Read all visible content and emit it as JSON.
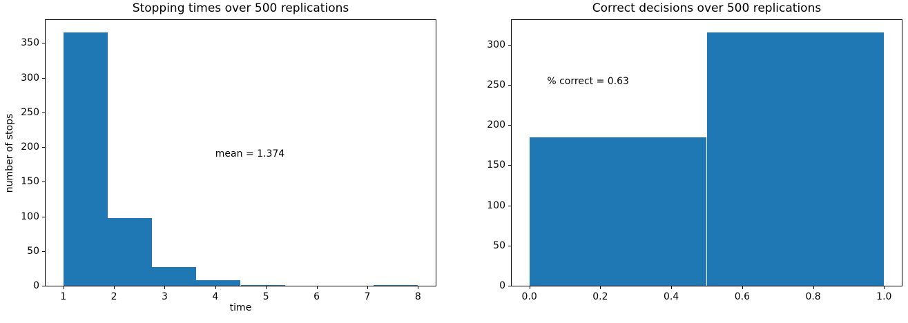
{
  "figure": {
    "background": "#ffffff",
    "bar_color": "#1f77b4",
    "spine_color": "#000000",
    "text_color": "#000000"
  },
  "chart_data": [
    {
      "type": "bar",
      "title": "Stopping times over 500 replications",
      "xlabel": "time",
      "ylabel": "number of stops",
      "total_replications": 500,
      "bin_edges": [
        1,
        1.875,
        2.75,
        3.625,
        4.5,
        5.375,
        6.25,
        7.125,
        8
      ],
      "counts": [
        365,
        98,
        27,
        8,
        1,
        0,
        0,
        1
      ],
      "xlim": [
        0.65,
        8.35
      ],
      "ylim": [
        0,
        383.25
      ],
      "xticks": {
        "values": [
          1,
          2,
          3,
          4,
          5,
          6,
          7,
          8
        ],
        "labels": [
          "1",
          "2",
          "3",
          "4",
          "5",
          "6",
          "7",
          "8"
        ]
      },
      "yticks": {
        "values": [
          0,
          50,
          100,
          150,
          200,
          250,
          300,
          350
        ],
        "labels": [
          "0",
          "50",
          "100",
          "150",
          "200",
          "250",
          "300",
          "350"
        ]
      },
      "annotation": {
        "text": "mean = 1.374",
        "x": 4.0,
        "y": 185
      },
      "grid": false,
      "legend": null
    },
    {
      "type": "bar",
      "title": "Correct decisions over 500 replications",
      "xlabel": "",
      "ylabel": "",
      "total_replications": 500,
      "bin_edges": [
        0,
        0.5,
        1.0
      ],
      "counts": [
        185,
        315
      ],
      "xlim": [
        -0.05,
        1.05
      ],
      "ylim": [
        0,
        330.75
      ],
      "xticks": {
        "values": [
          0.0,
          0.2,
          0.4,
          0.6,
          0.8,
          1.0
        ],
        "labels": [
          "0.0",
          "0.2",
          "0.4",
          "0.6",
          "0.8",
          "1.0"
        ]
      },
      "yticks": {
        "values": [
          0,
          50,
          100,
          150,
          200,
          250,
          300
        ],
        "labels": [
          "0",
          "50",
          "100",
          "150",
          "200",
          "250",
          "300"
        ]
      },
      "annotation": {
        "text": "% correct = 0.63",
        "x": 0.05,
        "y": 250
      },
      "grid": false,
      "legend": null
    }
  ]
}
